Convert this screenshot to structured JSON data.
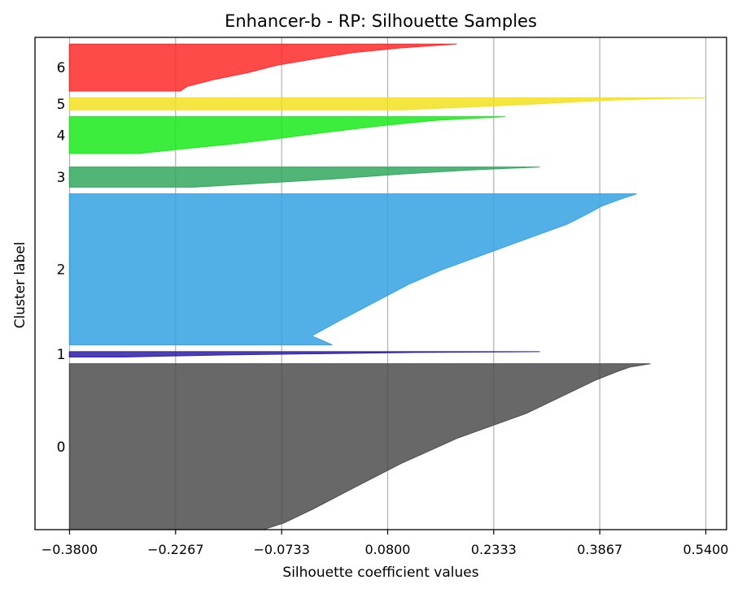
{
  "chart_data": {
    "type": "area",
    "title": "Enhancer-b - RP: Silhouette Samples",
    "xlabel": "Silhouette coefficient values",
    "ylabel": "Cluster label",
    "xlim": [
      -0.43,
      0.57
    ],
    "xticks": [
      -0.38,
      -0.2267,
      -0.0733,
      0.08,
      0.2333,
      0.3867,
      0.54
    ],
    "xtick_labels": [
      "−0.3800",
      "−0.2267",
      "−0.0733",
      "0.0800",
      "0.2333",
      "0.3867",
      "0.5400"
    ],
    "grid": "vertical",
    "clusters": [
      {
        "label": "0",
        "color": "#4d4d4d",
        "start": 0,
        "size": 247,
        "min": -0.38,
        "max": 0.46,
        "profile": [
          [
            0.0,
            0.46
          ],
          [
            0.02,
            0.43
          ],
          [
            0.05,
            0.41
          ],
          [
            0.1,
            0.38
          ],
          [
            0.18,
            0.34
          ],
          [
            0.3,
            0.28
          ],
          [
            0.45,
            0.18
          ],
          [
            0.6,
            0.1
          ],
          [
            0.75,
            0.03
          ],
          [
            0.88,
            -0.03
          ],
          [
            0.96,
            -0.07
          ],
          [
            1.0,
            -0.1
          ]
        ]
      },
      {
        "label": "1",
        "color": "#2e1fa6",
        "start": 257,
        "size": 8,
        "min": -0.38,
        "max": 0.3,
        "profile": [
          [
            0.0,
            0.3
          ],
          [
            0.15,
            0.12
          ],
          [
            0.35,
            0.0
          ],
          [
            0.6,
            -0.15
          ],
          [
            0.85,
            -0.25
          ],
          [
            1.0,
            -0.3
          ]
        ]
      },
      {
        "label": "2",
        "color": "#35a2e2",
        "start": 275,
        "size": 225,
        "min": -0.38,
        "max": 0.44,
        "profile": [
          [
            0.0,
            0.44
          ],
          [
            0.03,
            0.42
          ],
          [
            0.08,
            0.39
          ],
          [
            0.13,
            0.37
          ],
          [
            0.2,
            0.34
          ],
          [
            0.3,
            0.28
          ],
          [
            0.4,
            0.22
          ],
          [
            0.5,
            0.16
          ],
          [
            0.6,
            0.11
          ],
          [
            0.72,
            0.06
          ],
          [
            0.84,
            0.01
          ],
          [
            0.94,
            -0.03
          ],
          [
            1.0,
            -0.0
          ]
        ]
      },
      {
        "label": "3",
        "color": "#32a85f",
        "start": 510,
        "size": 30,
        "min": -0.38,
        "max": 0.3,
        "profile": [
          [
            0.0,
            0.3
          ],
          [
            0.15,
            0.2
          ],
          [
            0.35,
            0.1
          ],
          [
            0.6,
            0.0
          ],
          [
            0.8,
            -0.1
          ],
          [
            1.0,
            -0.2
          ]
        ]
      },
      {
        "label": "4",
        "color": "#1bea1b",
        "start": 560,
        "size": 55,
        "min": -0.38,
        "max": 0.25,
        "profile": [
          [
            0.0,
            0.25
          ],
          [
            0.1,
            0.15
          ],
          [
            0.25,
            0.07
          ],
          [
            0.45,
            -0.02
          ],
          [
            0.6,
            -0.08
          ],
          [
            0.75,
            -0.15
          ],
          [
            0.88,
            -0.22
          ],
          [
            1.0,
            -0.28
          ]
        ]
      },
      {
        "label": "5",
        "color": "#f2e11e",
        "start": 625,
        "size": 18,
        "min": -0.38,
        "max": 0.54,
        "profile": [
          [
            0.0,
            0.54
          ],
          [
            0.1,
            0.45
          ],
          [
            0.25,
            0.38
          ],
          [
            0.5,
            0.3
          ],
          [
            0.75,
            0.2
          ],
          [
            1.0,
            0.1
          ]
        ]
      },
      {
        "label": "6",
        "color": "#ff2a2a",
        "start": 653,
        "size": 70,
        "min": -0.38,
        "max": 0.18,
        "profile": [
          [
            0.0,
            0.18
          ],
          [
            0.08,
            0.1
          ],
          [
            0.18,
            0.03
          ],
          [
            0.3,
            -0.02
          ],
          [
            0.45,
            -0.08
          ],
          [
            0.6,
            -0.12
          ],
          [
            0.75,
            -0.17
          ],
          [
            0.9,
            -0.21
          ],
          [
            1.0,
            -0.22
          ]
        ]
      }
    ],
    "ylim": [
      0,
      733
    ]
  }
}
